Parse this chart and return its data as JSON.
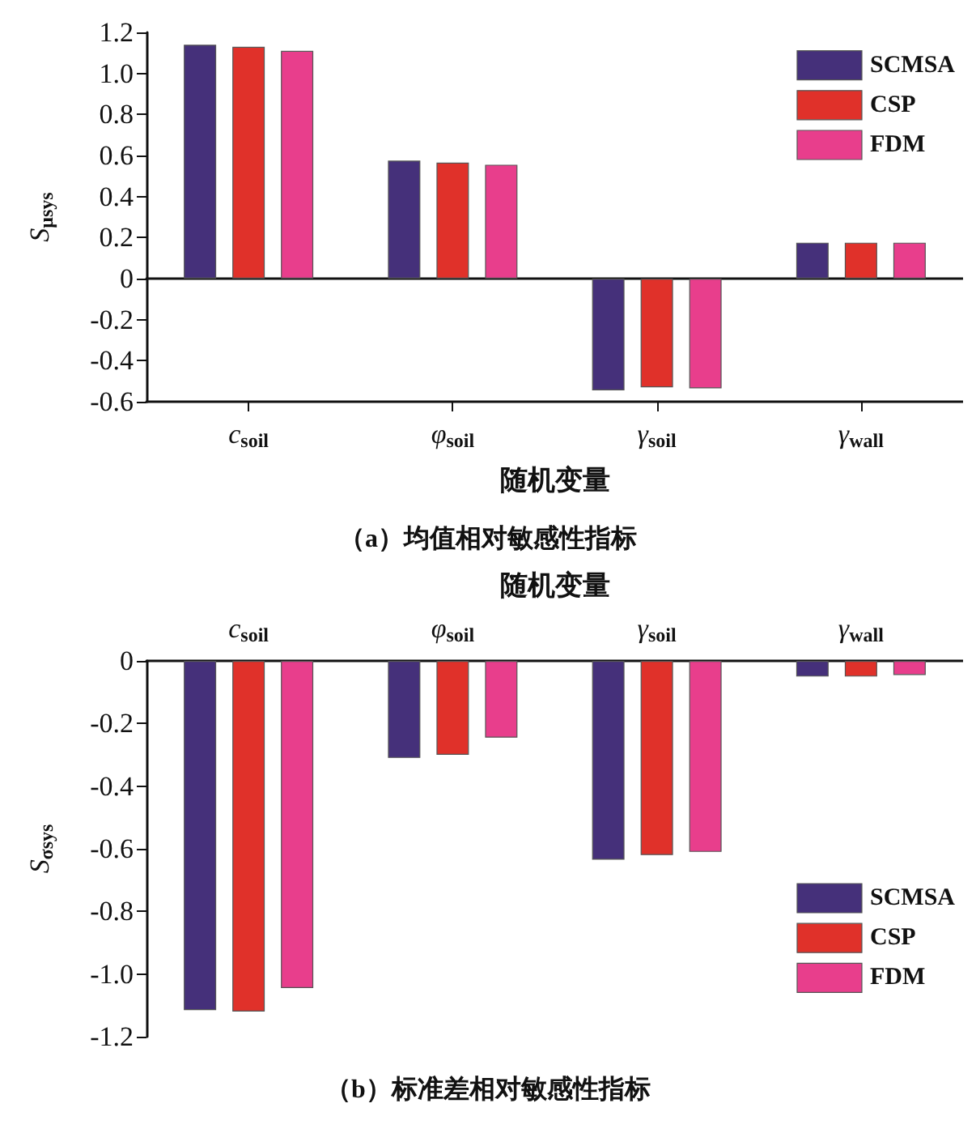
{
  "chart_data": [
    {
      "type": "bar",
      "title": "（a）均值相对敏感性指标",
      "xlabel": "随机变量",
      "ylabel": "S$_{μsys}$",
      "categories": [
        "c$_{soil}$",
        "φ$_{soil}$",
        "γ$_{soil}$",
        "γ$_{wall}$"
      ],
      "series": [
        {
          "name": "SCMSA",
          "color": "#45307a",
          "values": [
            1.14,
            0.575,
            -0.545,
            0.175
          ]
        },
        {
          "name": "CSP",
          "color": "#e0312a",
          "values": [
            1.13,
            0.565,
            -0.53,
            0.175
          ]
        },
        {
          "name": "FDM",
          "color": "#e83e8c",
          "values": [
            1.11,
            0.555,
            -0.535,
            0.175
          ]
        }
      ],
      "ylim": [
        -0.6,
        1.2
      ],
      "yticks": [
        -0.6,
        -0.4,
        -0.2,
        0,
        0.2,
        0.4,
        0.6,
        0.8,
        {
          "value": 1,
          "label": "1.0"
        },
        1.2
      ],
      "legend": "top right"
    },
    {
      "type": "bar",
      "title": "（b）标准差相对敏感性指标",
      "xlabel": "随机变量",
      "ylabel": "S$_{σsys}$",
      "categories": [
        "c$_{soil}$",
        "φ$_{soil}$",
        "γ$_{soil}$",
        "γ$_{wall}$"
      ],
      "series": [
        {
          "name": "SCMSA",
          "color": "#45307a",
          "values": [
            -1.115,
            -0.31,
            -0.635,
            -0.05
          ]
        },
        {
          "name": "CSP",
          "color": "#e0312a",
          "values": [
            -1.12,
            -0.3,
            -0.62,
            -0.05
          ]
        },
        {
          "name": "FDM",
          "color": "#e83e8c",
          "values": [
            -1.045,
            -0.245,
            -0.61,
            -0.045
          ]
        }
      ],
      "ylim": [
        -1.2,
        0
      ],
      "yticks": [
        -1.2,
        {
          "value": -1,
          "label": "-1.0"
        },
        -0.8,
        -0.6,
        -0.4,
        -0.2,
        0
      ],
      "grid": false,
      "legend": "bottom right"
    }
  ]
}
